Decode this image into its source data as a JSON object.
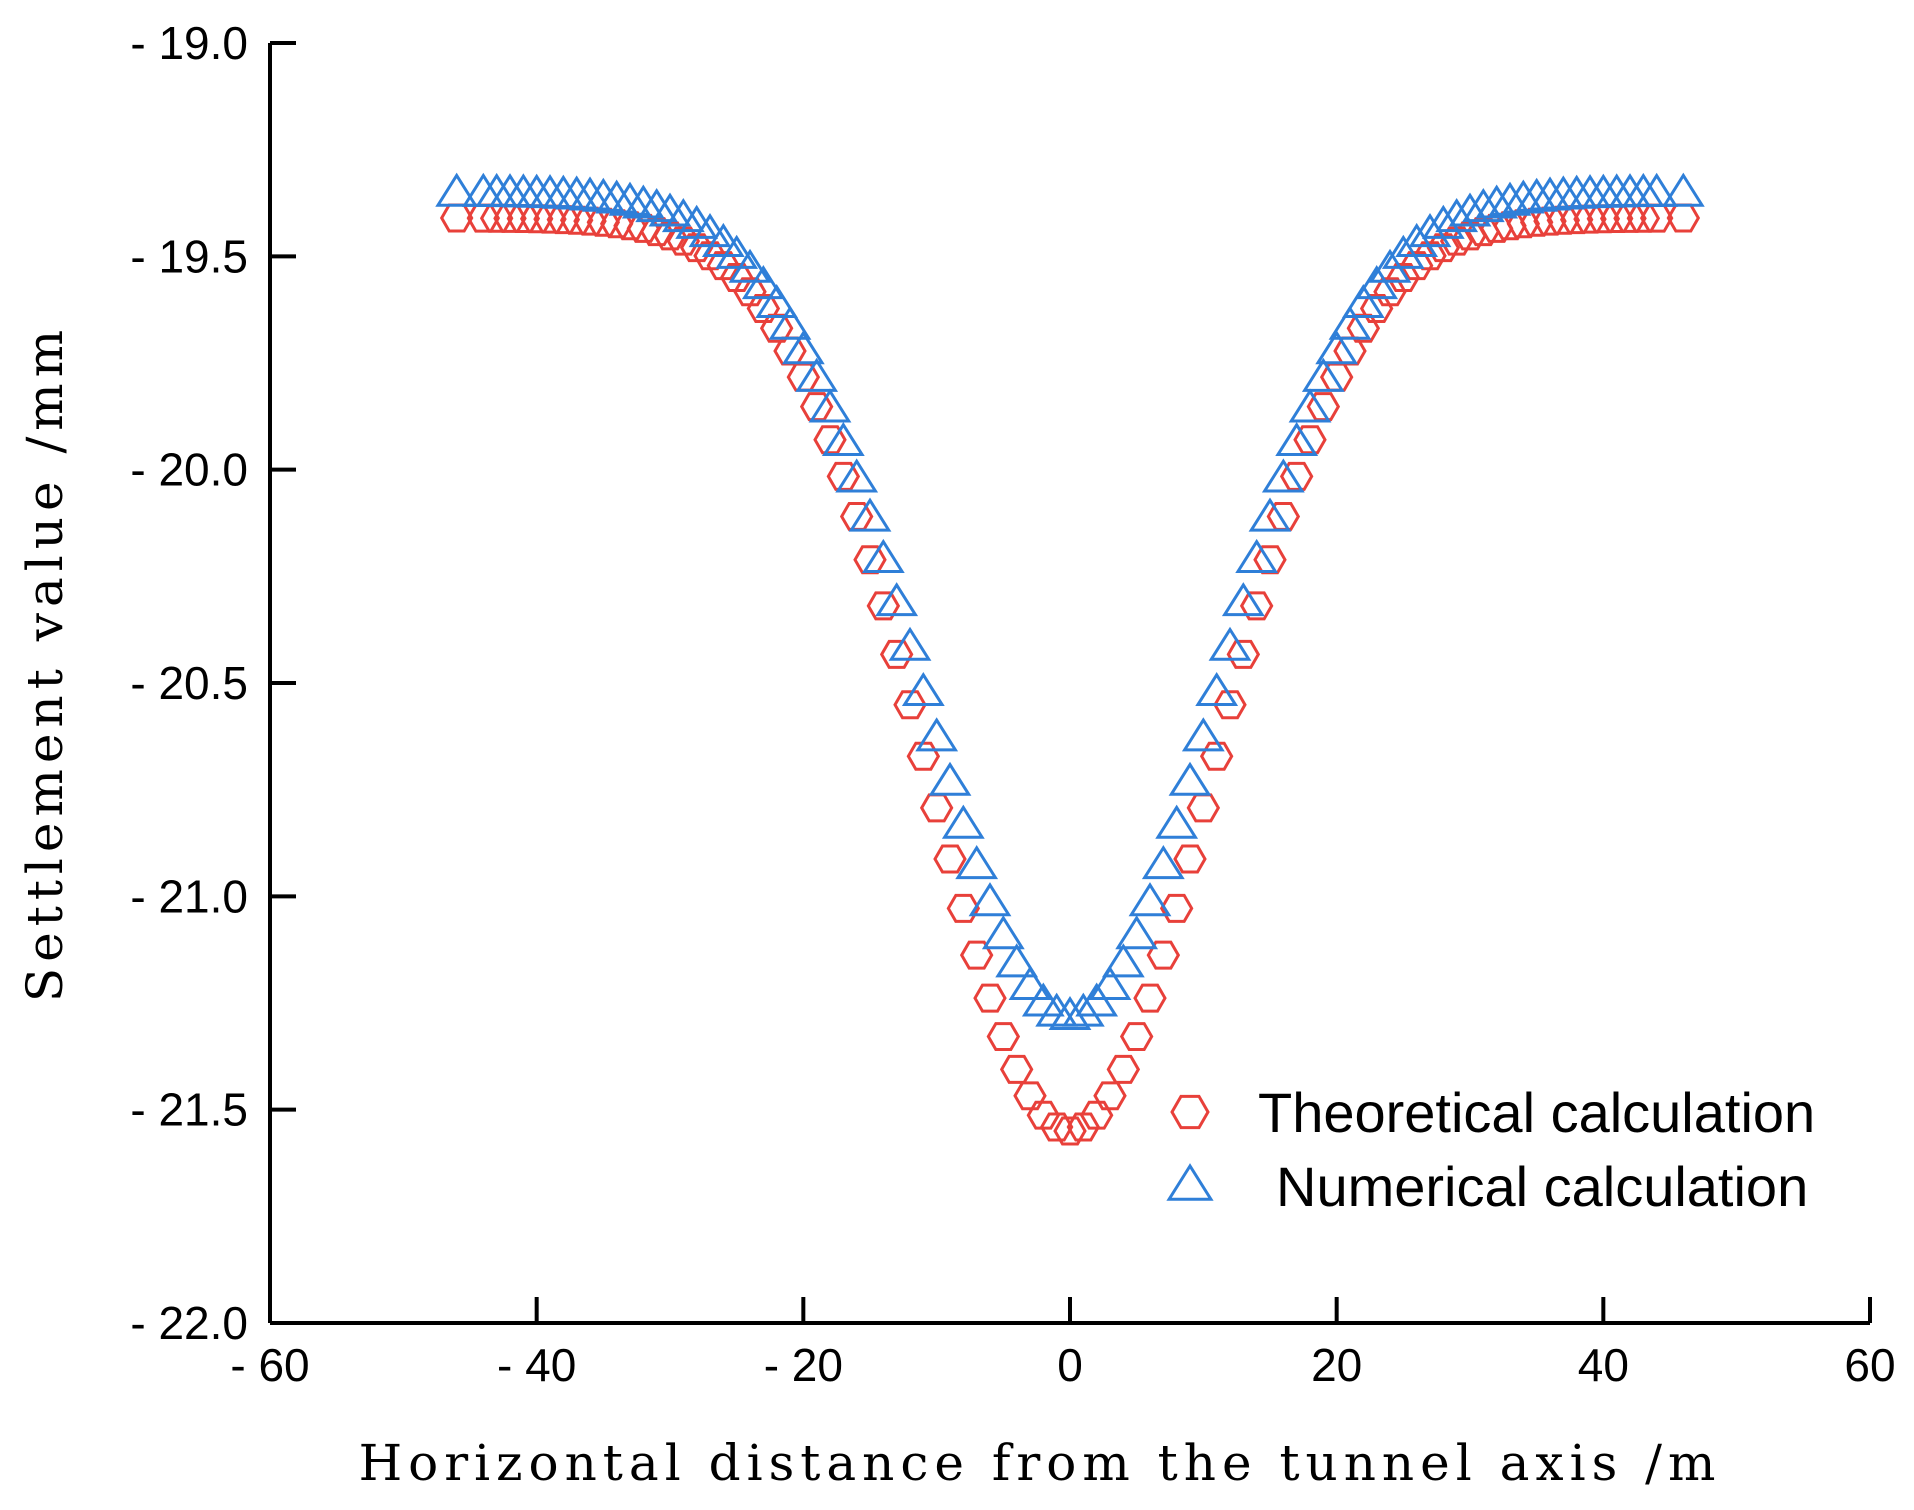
{
  "chart_data": {
    "type": "scatter",
    "title": "",
    "xlabel": "Horizontal distance from the tunnel axis /m",
    "ylabel": "Settlement value /mm",
    "xlim": [
      -60,
      60
    ],
    "ylim": [
      -22.0,
      -19.0
    ],
    "x_ticks": [
      -60,
      -40,
      -20,
      0,
      20,
      40,
      60
    ],
    "x_tick_labels": [
      "- 60",
      "- 40",
      "- 20",
      "0",
      "20",
      "40",
      "60"
    ],
    "y_ticks": [
      -19.0,
      -19.5,
      -20.0,
      -20.5,
      -21.0,
      -21.5,
      -22.0
    ],
    "y_tick_labels": [
      "- 19.0",
      "- 19.5",
      "- 20.0",
      "- 20.5",
      "- 21.0",
      "- 21.5",
      "- 22.0"
    ],
    "grid": false,
    "legend_position": "bottom-right",
    "series_model": "Gaussian settlement trough: y = base - depth * exp(-x^2 / (2 * i^2)), sampled at the plotted x positions",
    "series": [
      {
        "name": "Theoretical calculation",
        "marker": "hexagon",
        "color": "#e8403a",
        "base": -19.41,
        "depth": 2.14,
        "i": 10.7,
        "x": [
          -46,
          -44,
          -43,
          -42,
          -41,
          -40,
          -39,
          -38,
          -37,
          -36,
          -35,
          -34,
          -33,
          -32,
          -31,
          -30,
          -29,
          -28,
          -27,
          -26,
          -25,
          -24,
          -23,
          -22,
          -21,
          -20,
          -19,
          -18,
          -17,
          -16,
          -15,
          -14,
          -13,
          -12,
          -11,
          -10,
          -9,
          -8,
          -7,
          -6,
          -5,
          -4,
          -3,
          -2,
          -1,
          0,
          1,
          2,
          3,
          4,
          5,
          6,
          7,
          8,
          9,
          10,
          11,
          12,
          13,
          14,
          15,
          16,
          17,
          18,
          19,
          20,
          21,
          22,
          23,
          24,
          25,
          26,
          27,
          28,
          29,
          30,
          31,
          32,
          33,
          34,
          35,
          36,
          37,
          38,
          39,
          40,
          41,
          42,
          43,
          44,
          46
        ]
      },
      {
        "name": "Numerical calculation",
        "marker": "triangle",
        "color": "#2f7fd8",
        "base": -19.35,
        "depth": 1.93,
        "i": 11.0,
        "x": [
          -46,
          -44,
          -43,
          -42,
          -41,
          -40,
          -39,
          -38,
          -37,
          -36,
          -35,
          -34,
          -33,
          -32,
          -31,
          -30,
          -29,
          -28,
          -27,
          -26,
          -25,
          -24,
          -23,
          -22,
          -21,
          -20,
          -19,
          -18,
          -17,
          -16,
          -15,
          -14,
          -13,
          -12,
          -11,
          -10,
          -9,
          -8,
          -7,
          -6,
          -5,
          -4,
          -3,
          -2,
          -1,
          0,
          1,
          2,
          3,
          4,
          5,
          6,
          7,
          8,
          9,
          10,
          11,
          12,
          13,
          14,
          15,
          16,
          17,
          18,
          19,
          20,
          21,
          22,
          23,
          24,
          25,
          26,
          27,
          28,
          29,
          30,
          31,
          32,
          33,
          34,
          35,
          36,
          37,
          38,
          39,
          40,
          41,
          42,
          43,
          44,
          46
        ]
      }
    ]
  }
}
